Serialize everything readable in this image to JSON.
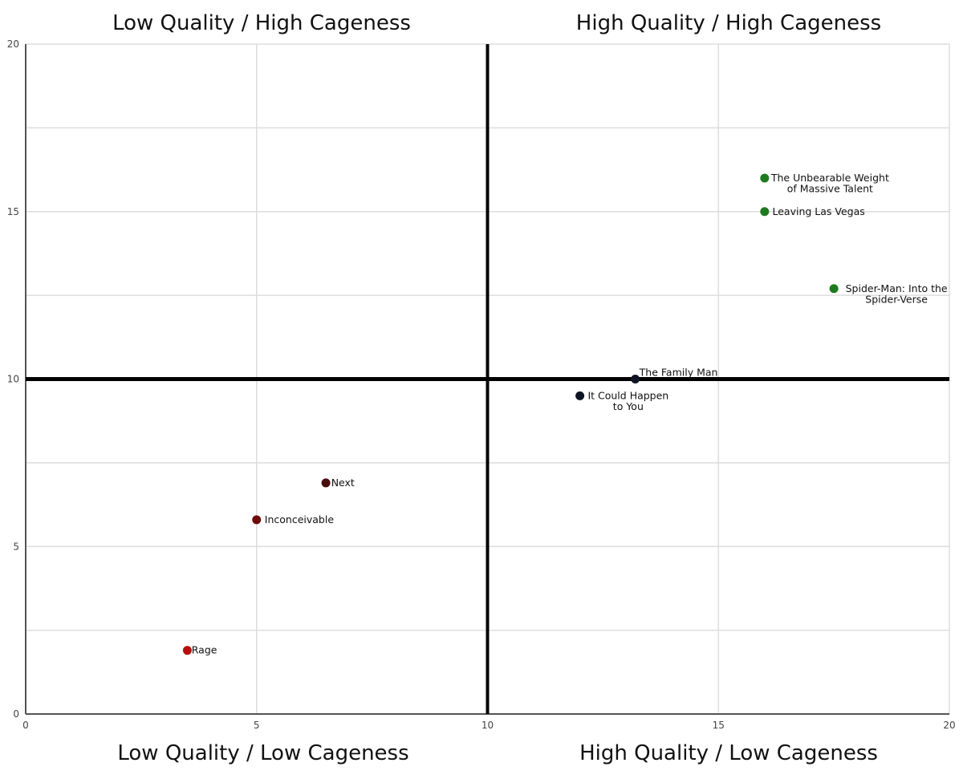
{
  "chart_data": {
    "type": "scatter",
    "title": "",
    "xlabel": "",
    "ylabel": "",
    "xlim": [
      0,
      20
    ],
    "ylim": [
      0,
      20
    ],
    "x_ticks": [
      0,
      5,
      10,
      15,
      20
    ],
    "y_ticks": [
      0,
      5,
      10,
      15,
      20
    ],
    "divider_x": 10,
    "divider_y": 10,
    "quadrant_titles": {
      "top_left": "Low Quality / High Cageness",
      "top_right": "High Quality / High Cageness",
      "bottom_left": "Low Quality / Low Cageness",
      "bottom_right": "High Quality / Low Cageness"
    },
    "points": [
      {
        "label": "The Unbearable Weight of Massive Talent",
        "label_lines": [
          "The Unbearable Weight",
          "of Massive Talent"
        ],
        "x": 16,
        "y": 16,
        "color": "#1e7a1e",
        "label_side": "right"
      },
      {
        "label": "Leaving Las Vegas",
        "label_lines": [
          "Leaving Las Vegas"
        ],
        "x": 16,
        "y": 15,
        "color": "#1e7a1e",
        "label_side": "right"
      },
      {
        "label": "Spider-Man: Into the Spider-Verse",
        "label_lines": [
          "Spider-Man: Into the",
          "Spider-Verse"
        ],
        "x": 17.5,
        "y": 12.7,
        "color": "#1e7a1e",
        "label_side": "right"
      },
      {
        "label": "The Family Man",
        "label_lines": [
          "The Family Man"
        ],
        "x": 13.2,
        "y": 10,
        "color": "#0d1424",
        "label_side": "above"
      },
      {
        "label": "It Could Happen to You",
        "label_lines": [
          "It Could Happen",
          "to You"
        ],
        "x": 12,
        "y": 9.5,
        "color": "#0d1424",
        "label_side": "right"
      },
      {
        "label": "Next",
        "label_lines": [
          "Next"
        ],
        "x": 6.5,
        "y": 6.9,
        "color": "#4a0d0d",
        "label_side": "right"
      },
      {
        "label": "Inconceivable",
        "label_lines": [
          "Inconceivable"
        ],
        "x": 5,
        "y": 5.8,
        "color": "#6e0a0a",
        "label_side": "right"
      },
      {
        "label": "Rage",
        "label_lines": [
          "Rage"
        ],
        "x": 3.5,
        "y": 1.9,
        "color": "#b80d0d",
        "label_side": "right"
      }
    ]
  }
}
